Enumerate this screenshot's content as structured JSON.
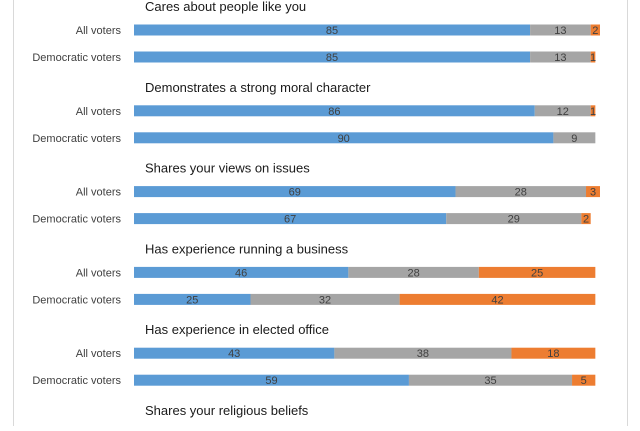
{
  "colors": {
    "series_1": "#5b9bd5",
    "series_2": "#a5a5a5",
    "series_3": "#ed7d31",
    "text": "#404040",
    "title_text": "#1a1a1a",
    "frame": "#d9d9d9"
  },
  "chart_data": {
    "type": "bar",
    "orientation": "horizontal",
    "stacked": true,
    "percent_stacked": true,
    "title": "",
    "xlabel": "",
    "ylabel": "",
    "legend": "none",
    "grid": false,
    "xlim": [
      0,
      100
    ],
    "groups": [
      {
        "title": "Cares about people like you",
        "rows": [
          {
            "label": "All voters",
            "values": [
              85,
              13,
              2
            ]
          },
          {
            "label": "Democratic voters",
            "values": [
              85,
              13,
              1
            ]
          }
        ]
      },
      {
        "title": "Demonstrates a strong moral character",
        "rows": [
          {
            "label": "All voters",
            "values": [
              86,
              12,
              1
            ]
          },
          {
            "label": "Democratic voters",
            "values": [
              90,
              9,
              0
            ]
          }
        ]
      },
      {
        "title": "Shares your views on issues",
        "rows": [
          {
            "label": "All voters",
            "values": [
              69,
              28,
              3
            ]
          },
          {
            "label": "Democratic voters",
            "values": [
              67,
              29,
              2
            ]
          }
        ]
      },
      {
        "title": "Has experience running a business",
        "rows": [
          {
            "label": "All voters",
            "values": [
              46,
              28,
              25
            ]
          },
          {
            "label": "Democratic voters",
            "values": [
              25,
              32,
              42
            ]
          }
        ]
      },
      {
        "title": "Has experience in elected office",
        "rows": [
          {
            "label": "All voters",
            "values": [
              43,
              38,
              18
            ]
          },
          {
            "label": "Democratic voters",
            "values": [
              59,
              35,
              5
            ]
          }
        ]
      },
      {
        "title": "Shares your religious beliefs",
        "rows": []
      }
    ]
  }
}
